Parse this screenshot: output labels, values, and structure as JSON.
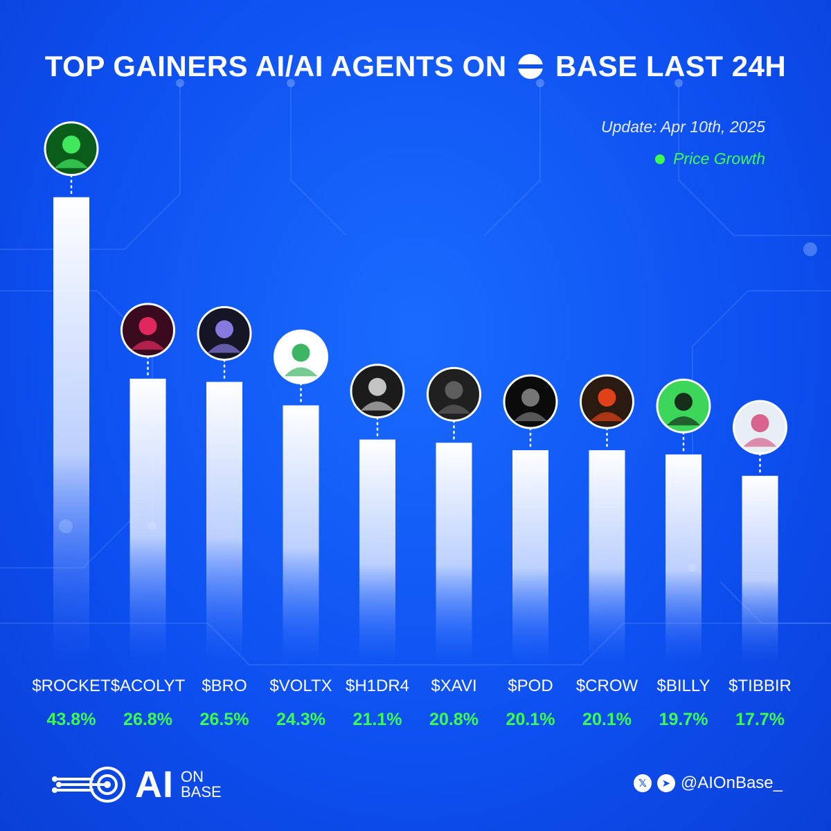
{
  "header": {
    "title_left": "TOP GAINERS AI/AI AGENTS ON",
    "title_right": "BASE LAST 24H",
    "update": "Update: Apr 10th, 2025",
    "legend_label": "Price Growth"
  },
  "colors": {
    "background": "#0d4ff0",
    "accent_green": "#3dff4f",
    "bar": "#ffffff"
  },
  "footer": {
    "logo_ai": "AI",
    "logo_on": "ON",
    "logo_base": "BASE",
    "handle": "@AIOnBase_",
    "x_icon_glyph": "𝕏",
    "telegram_icon_glyph": "➤"
  },
  "chart_data": {
    "type": "bar",
    "categories": [
      "$ROCKET",
      "$ACOLYT",
      "$BRO",
      "$VOLTX",
      "$H1DR4",
      "$XAVI",
      "$POD",
      "$CROW",
      "$BILLY",
      "$TIBBIR"
    ],
    "values": [
      43.8,
      26.8,
      26.5,
      24.3,
      21.1,
      20.8,
      20.1,
      20.1,
      19.7,
      17.7
    ],
    "value_labels": [
      "43.8%",
      "26.8%",
      "26.5%",
      "24.3%",
      "21.1%",
      "20.8%",
      "20.1%",
      "20.1%",
      "19.7%",
      "17.7%"
    ],
    "avatar_icons": [
      "pixel-cat-coder-icon",
      "red-circuit-head-icon",
      "robot-head-icon",
      "candlestick-chart-icon",
      "dragon-emblem-icon",
      "hooded-figure-icon",
      "swirl-icon",
      "plague-crow-icon",
      "headphones-silhouette-icon",
      "frog-glasses-icon"
    ],
    "ylim": [
      0,
      48
    ],
    "legend": "top-right",
    "grid": false
  }
}
